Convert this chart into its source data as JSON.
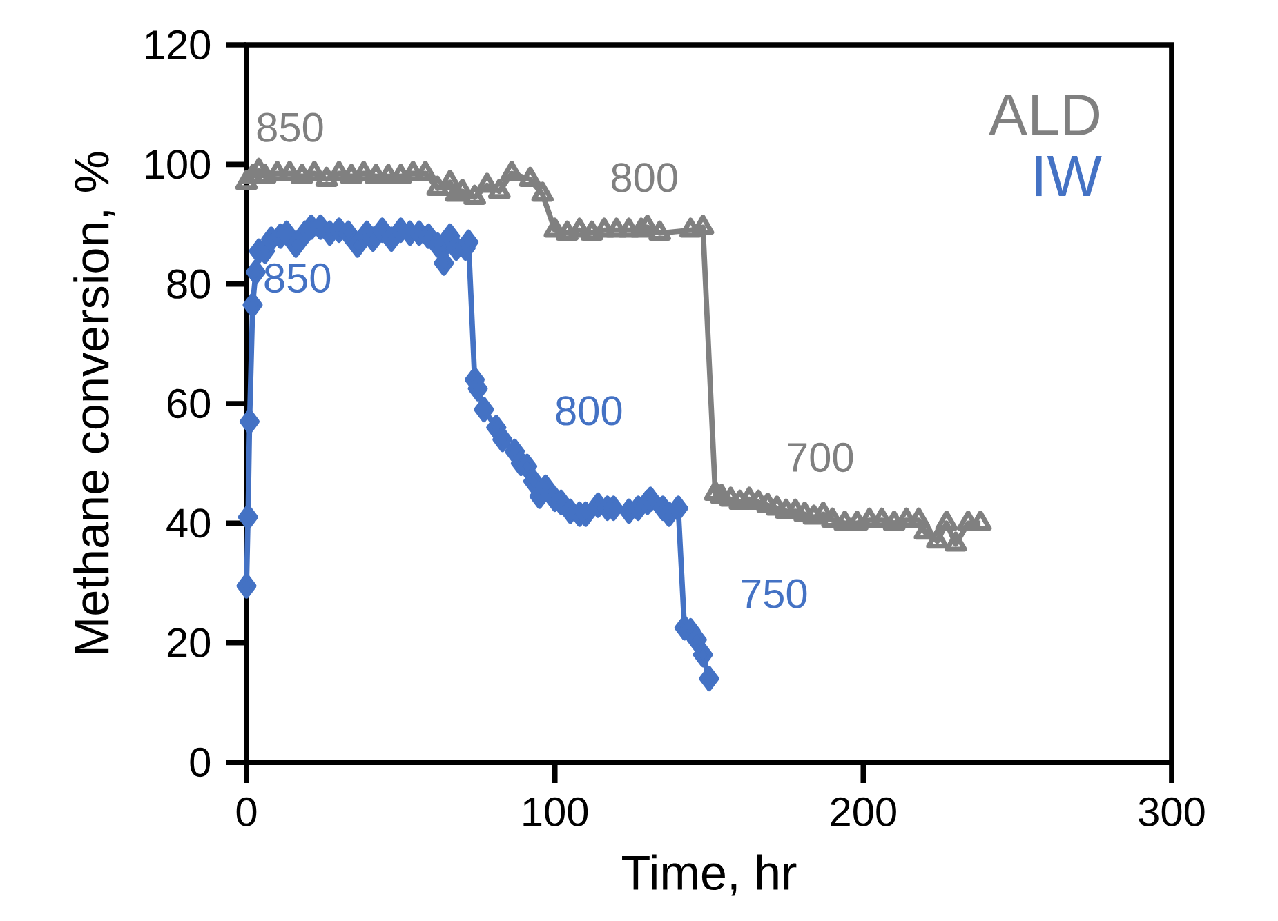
{
  "chart_data": {
    "type": "line",
    "xlabel": "Time, hr",
    "ylabel": "Methane conversion, %",
    "xlim": [
      0,
      300
    ],
    "ylim": [
      0,
      120
    ],
    "xticks": [
      0,
      100,
      200,
      300
    ],
    "yticks": [
      0,
      20,
      40,
      60,
      80,
      100,
      120
    ],
    "legend": false,
    "grid": false,
    "series": [
      {
        "name": "ALD",
        "color": "#808080",
        "marker": "triangle",
        "x": [
          0,
          2,
          4,
          6,
          10,
          14,
          18,
          22,
          26,
          30,
          34,
          38,
          42,
          46,
          50,
          54,
          58,
          62,
          66,
          68,
          70,
          74,
          78,
          82,
          86,
          92,
          96,
          100,
          104,
          108,
          112,
          116,
          120,
          124,
          128,
          130,
          134,
          144,
          148,
          152,
          154,
          157,
          160,
          163,
          166,
          169,
          172,
          175,
          178,
          181,
          184,
          187,
          190,
          194,
          198,
          202,
          206,
          210,
          214,
          218,
          220,
          224,
          227,
          230,
          234,
          238
        ],
        "values": [
          97,
          98,
          99,
          98,
          98.5,
          98.5,
          98,
          98.5,
          97.5,
          98.5,
          98,
          98.5,
          98,
          98,
          98,
          98.5,
          98.5,
          96,
          97,
          95,
          95.5,
          94.5,
          96.5,
          95.5,
          98.5,
          97.5,
          95,
          89,
          88.5,
          89,
          88.5,
          89,
          89,
          89,
          89,
          89.5,
          88.5,
          89,
          89.5,
          45,
          44.5,
          44,
          43.5,
          44,
          43.5,
          43,
          42.5,
          42,
          42,
          41.5,
          41,
          41.5,
          40.5,
          40,
          40,
          40.5,
          40.5,
          40,
          40.5,
          40.5,
          38.5,
          37,
          40,
          36.5,
          40,
          40
        ]
      },
      {
        "name": "IW",
        "color": "#4472c4",
        "marker": "diamond",
        "x": [
          0,
          0.5,
          1,
          2,
          3,
          4,
          6,
          8,
          11,
          13,
          16,
          19,
          21,
          24,
          27,
          30,
          33,
          36,
          39,
          41,
          44,
          47,
          50,
          53,
          56,
          59,
          62,
          64,
          66,
          68,
          71,
          72,
          74,
          75,
          77,
          81,
          83,
          87,
          89,
          91,
          93,
          95,
          97,
          100,
          102,
          105,
          108,
          110,
          114,
          117,
          119,
          124,
          127,
          130,
          131,
          135,
          137,
          140,
          142,
          144,
          146,
          148,
          150
        ],
        "values": [
          29.5,
          41,
          57,
          76.5,
          82,
          85.5,
          85.5,
          87.5,
          88,
          88.5,
          86.5,
          88.5,
          89.5,
          89.5,
          88.5,
          89,
          88.5,
          86.5,
          88.5,
          87.5,
          89,
          87.5,
          89,
          88.5,
          88.5,
          88,
          86.5,
          83.5,
          88,
          86,
          86,
          87,
          64,
          62.5,
          59,
          56,
          54,
          52,
          50,
          49.5,
          47,
          44.5,
          46,
          44,
          43.5,
          42,
          41.5,
          41.5,
          43,
          42.5,
          42.5,
          42,
          42.5,
          43.5,
          44,
          42.5,
          41.5,
          42.5,
          22.5,
          22,
          20.5,
          18,
          14
        ]
      }
    ],
    "annotations": [
      "850",
      "800",
      "700",
      "850",
      "800",
      "750"
    ]
  }
}
